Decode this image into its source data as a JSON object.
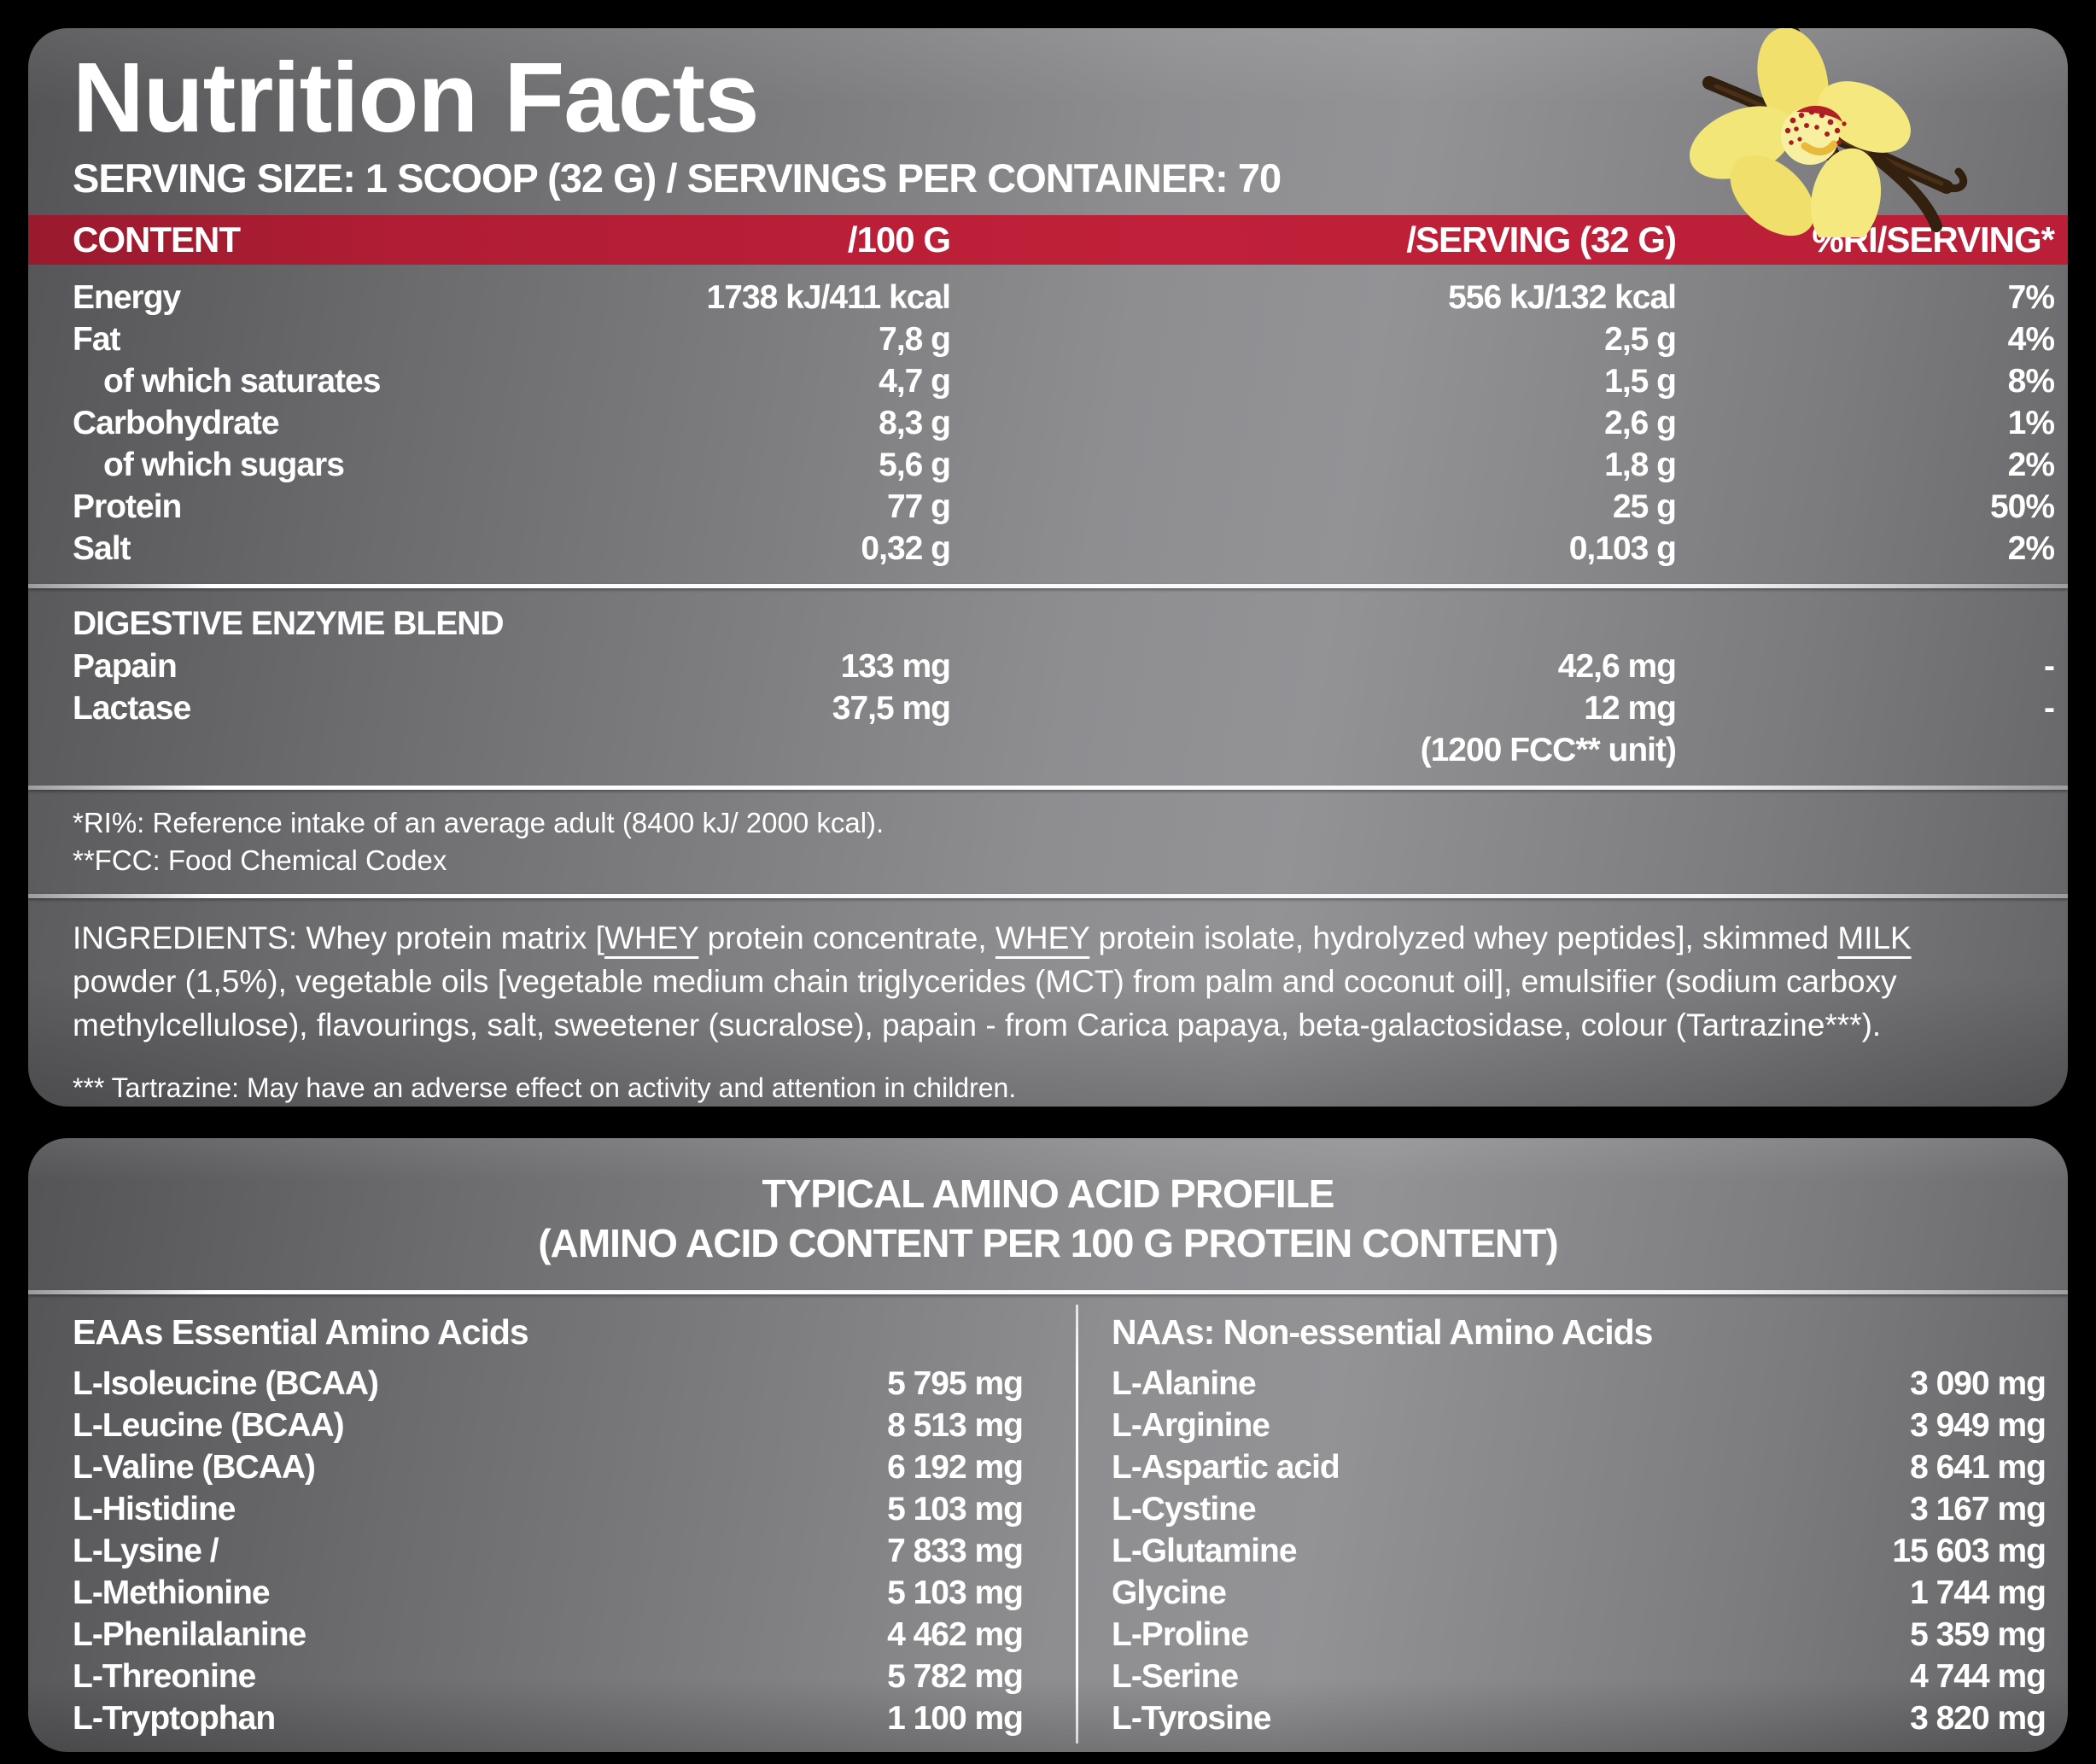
{
  "colors": {
    "accent_red": "#c02039",
    "panel_gray": "#8e8e91",
    "background": "#000000",
    "flower_yellow": "#f3e472",
    "pod_brown": "#3a2315"
  },
  "panel1": {
    "title": "Nutrition Facts",
    "serving_line": "SERVING SIZE: 1 SCOOP (32 G) / SERVINGS PER CONTAINER: 70",
    "columns": {
      "content": "CONTENT",
      "per100": "/100 G",
      "serving": "/SERVING (32 G)",
      "ri": "%RI/SERVING*"
    },
    "nutrients": [
      {
        "name": "Energy",
        "indent": false,
        "per100": "1738 kJ/411 kcal",
        "serving": "556 kJ/132 kcal",
        "ri": "7%"
      },
      {
        "name": "Fat",
        "indent": false,
        "per100": "7,8 g",
        "serving": "2,5 g",
        "ri": "4%"
      },
      {
        "name": "of which saturates",
        "indent": true,
        "per100": "4,7 g",
        "serving": "1,5 g",
        "ri": "8%"
      },
      {
        "name": "Carbohydrate",
        "indent": false,
        "per100": "8,3 g",
        "serving": "2,6 g",
        "ri": "1%"
      },
      {
        "name": "of which sugars",
        "indent": true,
        "per100": "5,6 g",
        "serving": "1,8 g",
        "ri": "2%"
      },
      {
        "name": "Protein",
        "indent": false,
        "per100": "77 g",
        "serving": "25 g",
        "ri": "50%"
      },
      {
        "name": "Salt",
        "indent": false,
        "per100": "0,32 g",
        "serving": "0,103 g",
        "ri": "2%"
      }
    ],
    "enzyme_blend": {
      "header": "DIGESTIVE ENZYME BLEND",
      "rows": [
        {
          "name": "Papain",
          "per100": "133 mg",
          "serving": "42,6 mg",
          "ri": "-"
        },
        {
          "name": "Lactase",
          "per100": "37,5 mg",
          "serving": "12 mg",
          "ri": "-"
        }
      ],
      "serving_note": "(1200 FCC** unit)"
    },
    "footnotes": [
      "*RI%: Reference intake of an average adult (8400 kJ/ 2000 kcal).",
      "**FCC: Food Chemical Codex"
    ],
    "ingredients_segments": [
      {
        "text": "INGREDIENTS: Whey protein matrix [",
        "underline": false
      },
      {
        "text": "WHEY",
        "underline": true
      },
      {
        "text": " protein concentrate, ",
        "underline": false
      },
      {
        "text": "WHEY",
        "underline": true
      },
      {
        "text": " protein isolate, hydrolyzed whey peptides], skimmed ",
        "underline": false
      },
      {
        "text": "MILK",
        "underline": true
      },
      {
        "text": " powder (1,5%), vegetable oils [vegetable medium chain triglycerides (MCT) from palm and coconut oil], emulsifier (sodium carboxy methylcellulose), flavourings, salt, sweetener (sucralose), papain - from Carica papaya, beta-galactosidase, colour (Tartrazine***).",
        "underline": false
      }
    ],
    "tartrazine_note": "*** Tartrazine: May have an adverse effect on activity and attention in children.",
    "image": "vanilla-flower-with-pods"
  },
  "panel2": {
    "title_line1": "TYPICAL AMINO ACID PROFILE",
    "title_line2": "(AMINO ACID CONTENT PER 100 G PROTEIN CONTENT)",
    "eaa": {
      "header": "EAAs Essential Amino Acids",
      "rows": [
        {
          "name": "L-Isoleucine (BCAA)",
          "value": "5 795 mg"
        },
        {
          "name": "L-Leucine (BCAA)",
          "value": "8 513 mg"
        },
        {
          "name": "L-Valine (BCAA)",
          "value": "6 192 mg"
        },
        {
          "name": "L-Histidine",
          "value": "5 103 mg"
        },
        {
          "name": "L-Lysine /",
          "value": "7 833 mg"
        },
        {
          "name": "L-Methionine",
          "value": "5 103 mg"
        },
        {
          "name": "L-Phenilalanine",
          "value": "4 462 mg"
        },
        {
          "name": "L-Threonine",
          "value": "5 782 mg"
        },
        {
          "name": "L-Tryptophan",
          "value": "1 100 mg"
        }
      ]
    },
    "naa": {
      "header": "NAAs: Non-essential Amino Acids",
      "rows": [
        {
          "name": "L-Alanine",
          "value": "3 090 mg"
        },
        {
          "name": "L-Arginine",
          "value": "3 949 mg"
        },
        {
          "name": "L-Aspartic acid",
          "value": "8 641 mg"
        },
        {
          "name": "L-Cystine",
          "value": "3 167 mg"
        },
        {
          "name": "L-Glutamine",
          "value": "15 603 mg"
        },
        {
          "name": "Glycine",
          "value": "1 744 mg"
        },
        {
          "name": "L-Proline",
          "value": "5 359 mg"
        },
        {
          "name": "L-Serine",
          "value": "4 744 mg"
        },
        {
          "name": "L-Tyrosine",
          "value": "3 820 mg"
        }
      ]
    }
  }
}
